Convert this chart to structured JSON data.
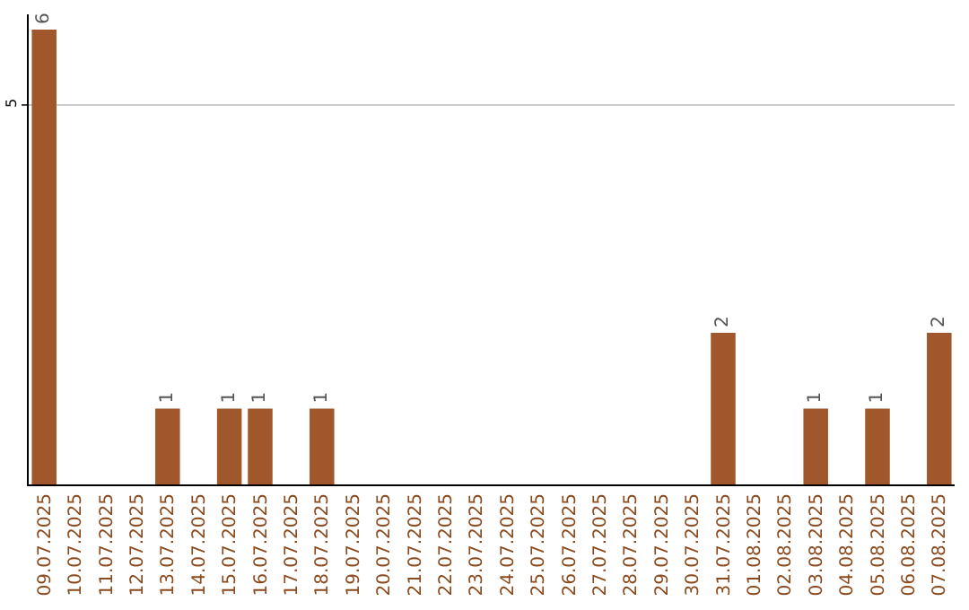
{
  "chart_data": {
    "type": "bar",
    "categories": [
      "09.07.2025",
      "10.07.2025",
      "11.07.2025",
      "12.07.2025",
      "13.07.2025",
      "14.07.2025",
      "15.07.2025",
      "16.07.2025",
      "17.07.2025",
      "18.07.2025",
      "19.07.2025",
      "20.07.2025",
      "21.07.2025",
      "22.07.2025",
      "23.07.2025",
      "24.07.2025",
      "25.07.2025",
      "26.07.2025",
      "27.07.2025",
      "28.07.2025",
      "29.07.2025",
      "30.07.2025",
      "31.07.2025",
      "01.08.2025",
      "02.08.2025",
      "03.08.2025",
      "04.08.2025",
      "05.08.2025",
      "06.08.2025",
      "07.08.2025"
    ],
    "values": [
      6,
      0,
      0,
      0,
      1,
      0,
      1,
      1,
      0,
      1,
      0,
      0,
      0,
      0,
      0,
      0,
      0,
      0,
      0,
      0,
      0,
      0,
      2,
      0,
      0,
      1,
      0,
      1,
      0,
      2
    ],
    "value_labels": [
      "6",
      null,
      null,
      null,
      "1",
      null,
      "1",
      "1",
      null,
      "1",
      null,
      null,
      null,
      null,
      null,
      null,
      null,
      null,
      null,
      null,
      null,
      null,
      "2",
      null,
      null,
      "1",
      null,
      "1",
      null,
      "2"
    ],
    "color": "#a0572b",
    "ylim": [
      0,
      6.2
    ],
    "yticks": [
      5
    ],
    "grid": "y"
  }
}
